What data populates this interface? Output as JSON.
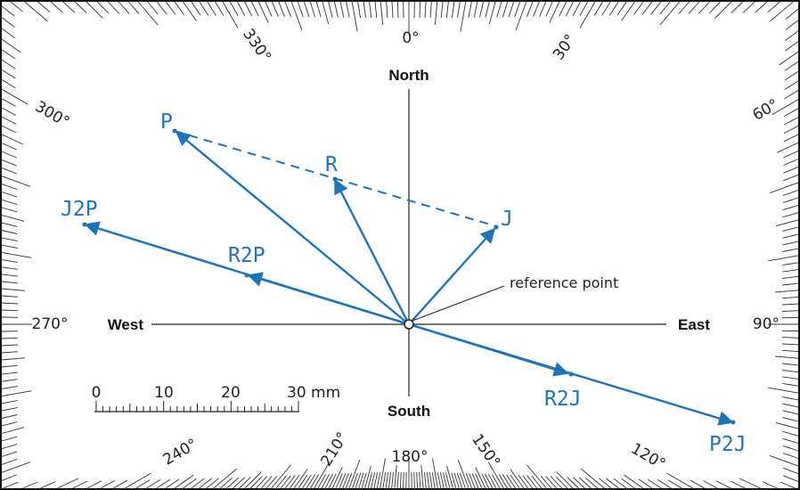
{
  "compass": {
    "degree_labels": [
      "0°",
      "30°",
      "60°",
      "90°",
      "120°",
      "150°",
      "180°",
      "210°",
      "240°",
      "270°",
      "300°",
      "330°"
    ],
    "directions": {
      "north": "North",
      "south": "South",
      "east": "East",
      "west": "West"
    }
  },
  "reference_label": "reference point",
  "vectors": [
    {
      "label": "P",
      "style": "solid"
    },
    {
      "label": "R",
      "style": "solid"
    },
    {
      "label": "J",
      "style": "solid"
    },
    {
      "label": "J2P",
      "style": "solid"
    },
    {
      "label": "R2P",
      "style": "solid"
    },
    {
      "label": "R2J",
      "style": "solid"
    },
    {
      "label": "P2J",
      "style": "solid"
    }
  ],
  "scale": {
    "labels": [
      "0",
      "10",
      "20",
      "30 mm"
    ]
  },
  "colors": {
    "vector": "#1f73b7",
    "ink": "#222222",
    "frame": "#111111"
  }
}
